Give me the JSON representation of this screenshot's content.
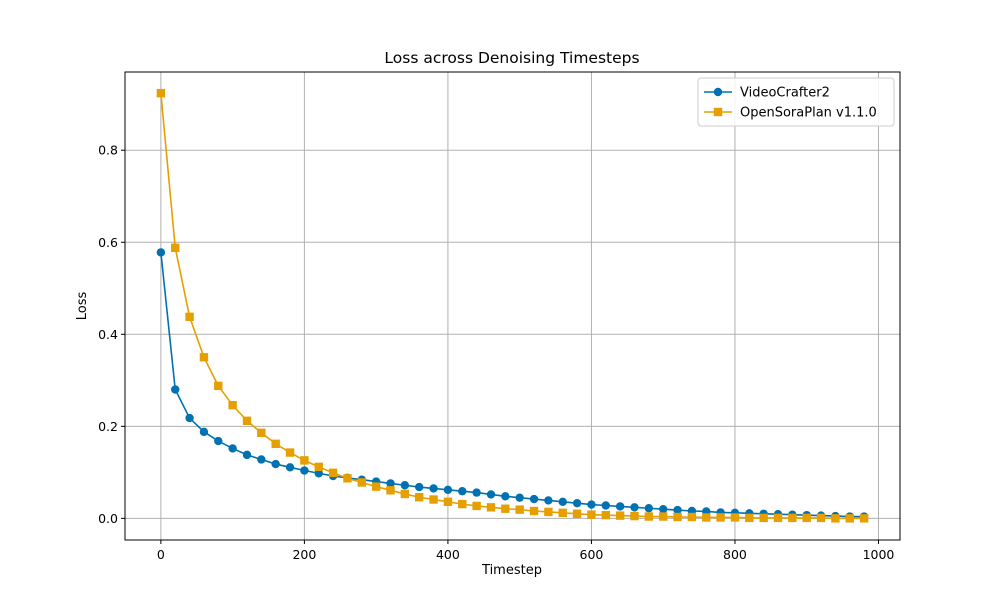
{
  "chart_data": {
    "type": "line",
    "title": "Loss across Denoising Timesteps",
    "xlabel": "Timestep",
    "ylabel": "Loss",
    "xlim": [
      -50,
      1030
    ],
    "ylim": [
      -0.047,
      0.97
    ],
    "xticks": [
      0,
      200,
      400,
      600,
      800,
      1000
    ],
    "yticks": [
      0.0,
      0.2,
      0.4,
      0.6,
      0.8
    ],
    "grid": true,
    "legend_position": "top-right",
    "x": [
      0,
      20,
      40,
      60,
      80,
      100,
      120,
      140,
      160,
      180,
      200,
      220,
      240,
      260,
      280,
      300,
      320,
      340,
      360,
      380,
      400,
      420,
      440,
      460,
      480,
      500,
      520,
      540,
      560,
      580,
      600,
      620,
      640,
      660,
      680,
      700,
      720,
      740,
      760,
      780,
      800,
      820,
      840,
      860,
      880,
      900,
      920,
      940,
      960,
      980
    ],
    "series": [
      {
        "name": "VideoCrafter2",
        "color": "#0072b2",
        "marker": "circle",
        "values": [
          0.578,
          0.28,
          0.218,
          0.188,
          0.168,
          0.152,
          0.138,
          0.128,
          0.118,
          0.111,
          0.104,
          0.098,
          0.092,
          0.088,
          0.084,
          0.08,
          0.076,
          0.072,
          0.068,
          0.065,
          0.062,
          0.059,
          0.056,
          0.052,
          0.048,
          0.045,
          0.042,
          0.039,
          0.036,
          0.033,
          0.03,
          0.028,
          0.026,
          0.024,
          0.022,
          0.02,
          0.018,
          0.016,
          0.015,
          0.013,
          0.012,
          0.011,
          0.01,
          0.009,
          0.008,
          0.007,
          0.006,
          0.005,
          0.004,
          0.004
        ]
      },
      {
        "name": "OpenSoraPlan v1.1.0",
        "color": "#e69f00",
        "marker": "square",
        "values": [
          0.924,
          0.588,
          0.438,
          0.35,
          0.288,
          0.246,
          0.212,
          0.186,
          0.162,
          0.143,
          0.126,
          0.112,
          0.099,
          0.087,
          0.078,
          0.069,
          0.061,
          0.053,
          0.046,
          0.041,
          0.036,
          0.031,
          0.027,
          0.024,
          0.021,
          0.019,
          0.016,
          0.014,
          0.012,
          0.01,
          0.008,
          0.007,
          0.006,
          0.005,
          0.004,
          0.004,
          0.003,
          0.003,
          0.002,
          0.002,
          0.002,
          0.001,
          0.001,
          0.001,
          0.001,
          0.001,
          0.001,
          0.0,
          0.0,
          0.0
        ]
      }
    ]
  }
}
